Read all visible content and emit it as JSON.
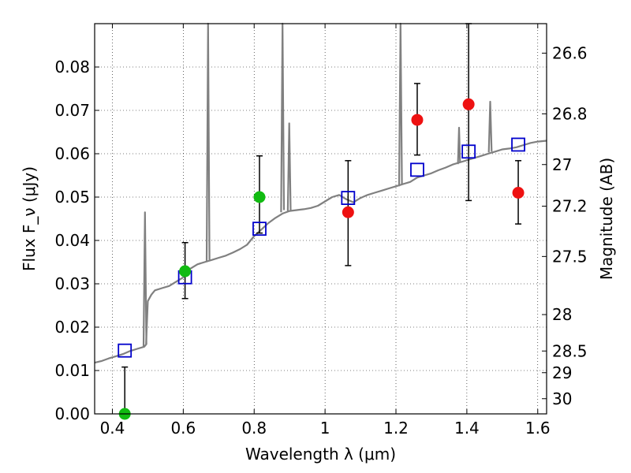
{
  "chart_data": {
    "type": "scatter",
    "xlabel": "Wavelength λ (μm)",
    "ylabel": "Flux F_ν (μJy)",
    "ylabel_right": "Magnitude (AB)",
    "xlim": [
      0.35,
      1.625
    ],
    "ylim": [
      0.0,
      0.09
    ],
    "x_ticks": [
      0.4,
      0.6,
      0.8,
      1.0,
      1.2,
      1.4,
      1.6
    ],
    "x_tick_labels": [
      "0.4",
      "0.6",
      "0.8",
      "1",
      "1.2",
      "1.4",
      "1.6"
    ],
    "y_ticks": [
      0.0,
      0.01,
      0.02,
      0.03,
      0.04,
      0.05,
      0.06,
      0.07,
      0.08
    ],
    "y_tick_labels": [
      "0.00",
      "0.01",
      "0.02",
      "0.03",
      "0.04",
      "0.05",
      "0.06",
      "0.07",
      "0.08"
    ],
    "right_ticks": [
      {
        "label": "26.6",
        "flux": 0.0832
      },
      {
        "label": "26.8",
        "flux": 0.0692
      },
      {
        "label": "27",
        "flux": 0.0575
      },
      {
        "label": "27.2",
        "flux": 0.0479
      },
      {
        "label": "27.5",
        "flux": 0.0363
      },
      {
        "label": "28",
        "flux": 0.0229
      },
      {
        "label": "28.5",
        "flux": 0.0145
      },
      {
        "label": "29",
        "flux": 0.0095
      },
      {
        "label": "30",
        "flux": 0.0035
      }
    ],
    "grid": true,
    "colors": {
      "spectrum": "#808080",
      "model": "#0000cc",
      "detection": "#ee1111",
      "alt_detection": "#11bb11",
      "errorbar": "#000000"
    },
    "series": [
      {
        "type": "line",
        "role": "spectrum",
        "x": [
          0.35,
          0.37,
          0.39,
          0.41,
          0.43,
          0.45,
          0.47,
          0.49,
          0.495,
          0.5,
          0.51,
          0.52,
          0.54,
          0.56,
          0.58,
          0.6,
          0.62,
          0.64,
          0.66,
          0.68,
          0.7,
          0.72,
          0.74,
          0.76,
          0.78,
          0.8,
          0.82,
          0.84,
          0.86,
          0.88,
          0.9,
          0.92,
          0.94,
          0.96,
          0.98,
          1.0,
          1.02,
          1.04,
          1.06,
          1.08,
          1.1,
          1.12,
          1.14,
          1.16,
          1.18,
          1.2,
          1.22,
          1.24,
          1.26,
          1.28,
          1.3,
          1.32,
          1.34,
          1.36,
          1.38,
          1.4,
          1.42,
          1.44,
          1.46,
          1.48,
          1.5,
          1.52,
          1.54,
          1.56,
          1.58,
          1.6,
          1.625
        ],
        "y": [
          0.0118,
          0.0122,
          0.0128,
          0.0133,
          0.0138,
          0.0145,
          0.015,
          0.0155,
          0.016,
          0.026,
          0.0275,
          0.0285,
          0.029,
          0.0295,
          0.0305,
          0.0315,
          0.0335,
          0.0345,
          0.035,
          0.0355,
          0.036,
          0.0365,
          0.0372,
          0.038,
          0.039,
          0.041,
          0.0425,
          0.044,
          0.0452,
          0.0462,
          0.0468,
          0.047,
          0.0472,
          0.0475,
          0.048,
          0.049,
          0.05,
          0.0505,
          0.0495,
          0.0488,
          0.0498,
          0.0505,
          0.051,
          0.0515,
          0.052,
          0.0525,
          0.053,
          0.0535,
          0.0545,
          0.055,
          0.0555,
          0.0562,
          0.0568,
          0.0575,
          0.058,
          0.0585,
          0.059,
          0.0595,
          0.06,
          0.0605,
          0.061,
          0.0612,
          0.0615,
          0.062,
          0.0625,
          0.0628,
          0.063
        ]
      },
      {
        "type": "line",
        "role": "spectrum-lines",
        "segments": [
          {
            "x": [
              0.488,
              0.492,
              0.496
            ],
            "y": [
              0.0155,
              0.0465,
              0.016
            ]
          },
          {
            "x": [
              0.666,
              0.67,
              0.674
            ],
            "y": [
              0.035,
              0.09,
              0.0355
            ]
          },
          {
            "x": [
              0.876,
              0.88,
              0.884
            ],
            "y": [
              0.0465,
              0.09,
              0.047
            ]
          },
          {
            "x": [
              0.895,
              0.899,
              0.903
            ],
            "y": [
              0.0468,
              0.067,
              0.0468
            ]
          },
          {
            "x": [
              1.209,
              1.213,
              1.217
            ],
            "y": [
              0.0525,
              0.09,
              0.053
            ]
          },
          {
            "x": [
              1.375,
              1.378,
              1.381
            ],
            "y": [
              0.0576,
              0.066,
              0.058
            ]
          },
          {
            "x": [
              1.462,
              1.466,
              1.47
            ],
            "y": [
              0.0603,
              0.072,
              0.0605
            ]
          }
        ]
      },
      {
        "type": "scatter",
        "role": "model",
        "marker": "square",
        "x": [
          0.435,
          0.605,
          0.815,
          1.065,
          1.26,
          1.405,
          1.545
        ],
        "y": [
          0.0146,
          0.0315,
          0.0427,
          0.0498,
          0.0563,
          0.0605,
          0.0621
        ]
      },
      {
        "type": "scatter",
        "role": "detection",
        "marker": "circle",
        "x": [
          1.065,
          1.26,
          1.405,
          1.545
        ],
        "y": [
          0.0465,
          0.0678,
          0.0714,
          0.051
        ],
        "err_low": [
          0.0342,
          0.0597,
          0.0492,
          0.0438
        ],
        "err_high": [
          0.0584,
          0.0762,
          0.09,
          0.0584
        ]
      },
      {
        "type": "scatter",
        "role": "alt_detection",
        "marker": "circle",
        "x": [
          0.435,
          0.605,
          0.815
        ],
        "y": [
          0.0,
          0.0329,
          0.05
        ],
        "err_low": [
          0.0,
          0.0266,
          0.0417
        ],
        "err_high": [
          0.0108,
          0.0395,
          0.0595
        ]
      }
    ]
  }
}
